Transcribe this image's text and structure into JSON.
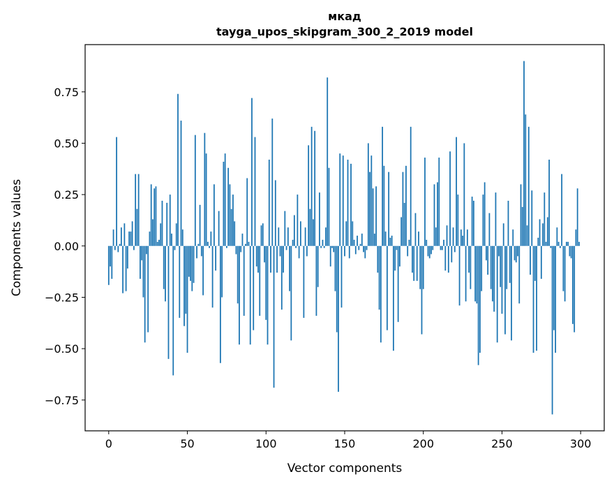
{
  "chart_data": {
    "type": "bar",
    "title": "мкад",
    "subtitle": "tayga_upos_skipgram_300_2_2019 model",
    "xlabel": "Vector components",
    "ylabel": "Components values",
    "xlim": [
      -15,
      315
    ],
    "ylim": [
      -0.9,
      0.98
    ],
    "xticks": [
      0,
      50,
      100,
      150,
      200,
      250,
      300
    ],
    "xtick_labels": [
      "0",
      "50",
      "100",
      "150",
      "200",
      "250",
      "300"
    ],
    "yticks": [
      -0.75,
      -0.5,
      -0.25,
      0.0,
      0.25,
      0.5,
      0.75
    ],
    "ytick_labels": [
      "−0.75",
      "−0.50",
      "−0.25",
      "0.00",
      "0.25",
      "0.50",
      "0.75"
    ],
    "grid": false,
    "color": "#1f77b4",
    "values": [
      -0.19,
      -0.1,
      -0.16,
      0.08,
      -0.02,
      0.53,
      -0.03,
      0.01,
      0.09,
      -0.23,
      0.11,
      -0.22,
      -0.11,
      0.07,
      0.07,
      0.12,
      -0.02,
      0.35,
      0.18,
      0.35,
      -0.16,
      -0.07,
      -0.25,
      -0.47,
      -0.04,
      -0.42,
      0.07,
      0.3,
      0.13,
      0.28,
      0.29,
      0.02,
      0.03,
      0.11,
      0.22,
      -0.21,
      -0.27,
      0.21,
      -0.55,
      0.25,
      0.06,
      -0.63,
      -0.02,
      0.11,
      0.74,
      -0.35,
      0.61,
      0.08,
      -0.39,
      -0.33,
      -0.52,
      -0.15,
      -0.17,
      -0.22,
      -0.18,
      0.54,
      -0.06,
      0.01,
      0.2,
      -0.05,
      -0.24,
      0.55,
      0.45,
      0.02,
      -0.01,
      0.07,
      -0.3,
      0.3,
      -0.12,
      0.0,
      0.17,
      -0.57,
      -0.25,
      0.41,
      0.45,
      -0.01,
      0.38,
      0.3,
      0.18,
      0.25,
      0.12,
      -0.04,
      -0.28,
      -0.48,
      -0.03,
      0.06,
      -0.34,
      0.01,
      0.33,
      0.02,
      -0.48,
      0.72,
      -0.41,
      0.53,
      -0.1,
      -0.13,
      -0.34,
      0.1,
      0.11,
      -0.08,
      -0.36,
      -0.48,
      0.42,
      -0.13,
      0.62,
      -0.69,
      0.32,
      -0.13,
      0.09,
      -0.05,
      -0.31,
      -0.13,
      0.17,
      -0.02,
      0.09,
      -0.22,
      -0.46,
      0.03,
      0.15,
      -0.01,
      0.25,
      -0.06,
      0.12,
      0.0,
      -0.35,
      0.09,
      -0.05,
      0.49,
      0.18,
      0.58,
      0.13,
      0.56,
      -0.34,
      -0.2,
      0.26,
      -0.01,
      0.03,
      -0.01,
      0.09,
      0.82,
      0.38,
      -0.1,
      -0.01,
      -0.03,
      -0.22,
      -0.42,
      -0.71,
      0.45,
      -0.3,
      0.44,
      -0.05,
      0.12,
      0.42,
      -0.06,
      0.4,
      0.12,
      0.03,
      -0.04,
      0.05,
      -0.02,
      0.01,
      0.06,
      -0.03,
      -0.06,
      -0.02,
      0.5,
      0.36,
      0.44,
      0.28,
      0.06,
      0.29,
      -0.13,
      -0.31,
      -0.47,
      0.58,
      0.39,
      0.07,
      -0.41,
      0.36,
      0.04,
      0.05,
      -0.51,
      -0.12,
      -0.02,
      -0.37,
      -0.1,
      0.14,
      0.36,
      0.21,
      0.39,
      -0.05,
      0.03,
      0.58,
      -0.13,
      -0.17,
      0.16,
      -0.17,
      0.07,
      -0.21,
      -0.43,
      -0.21,
      0.43,
      0.03,
      -0.05,
      -0.06,
      -0.04,
      -0.02,
      0.3,
      0.09,
      0.31,
      0.43,
      -0.02,
      -0.02,
      0.03,
      -0.12,
      0.1,
      -0.13,
      0.46,
      -0.08,
      0.09,
      -0.03,
      0.53,
      0.25,
      -0.29,
      0.08,
      0.05,
      0.5,
      -0.27,
      0.08,
      -0.13,
      -0.21,
      0.24,
      0.22,
      -0.27,
      -0.28,
      -0.58,
      -0.52,
      -0.22,
      0.25,
      0.31,
      -0.07,
      -0.14,
      0.16,
      -0.21,
      -0.27,
      -0.32,
      0.26,
      -0.47,
      -0.05,
      -0.2,
      -0.33,
      0.11,
      -0.43,
      -0.21,
      0.22,
      -0.18,
      -0.46,
      0.08,
      -0.07,
      -0.08,
      -0.05,
      -0.28,
      0.3,
      0.19,
      0.9,
      0.64,
      0.1,
      0.58,
      -0.14,
      0.27,
      -0.52,
      -0.17,
      -0.51,
      0.04,
      0.13,
      -0.16,
      0.11,
      0.26,
      0.02,
      0.14,
      0.42,
      -0.01,
      -0.82,
      -0.41,
      -0.52,
      0.09,
      0.02,
      -0.01,
      0.35,
      -0.22,
      -0.27,
      0.02,
      0.02,
      -0.05,
      -0.06,
      -0.38,
      -0.42,
      0.08,
      0.28,
      0.02
    ]
  }
}
